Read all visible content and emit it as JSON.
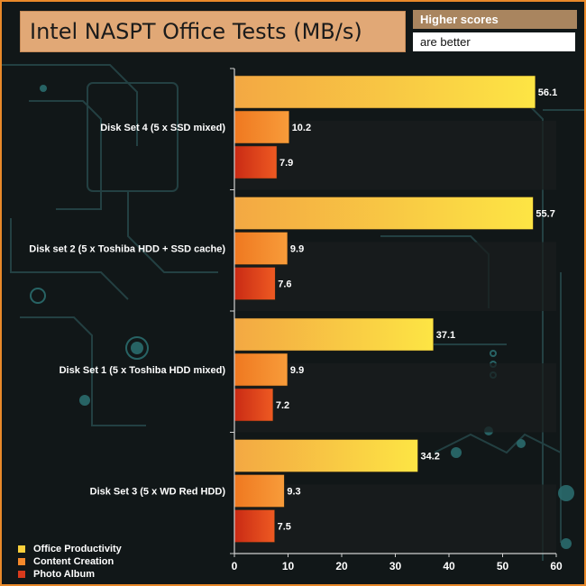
{
  "chart_data": {
    "type": "bar",
    "orientation": "horizontal",
    "title": "Intel NASPT Office Tests (MB/s)",
    "note": [
      "Higher scores",
      "are better"
    ],
    "categories": [
      "Disk Set 4 (5 x SSD mixed)",
      "Disk set 2 (5 x Toshiba HDD + SSD cache)",
      "Disk Set 1 (5 x Toshiba HDD mixed)",
      "Disk Set 3 (5 x WD Red HDD)"
    ],
    "series": [
      {
        "name": "Office Productivity",
        "values": [
          56.1,
          55.7,
          37.1,
          34.2
        ],
        "color": "#fbd03c"
      },
      {
        "name": "Content Creation",
        "values": [
          10.2,
          9.9,
          9.9,
          9.3
        ],
        "color": "#f5892b"
      },
      {
        "name": "Photo Album",
        "values": [
          7.9,
          7.6,
          7.2,
          7.5
        ],
        "color": "#d93a1c"
      }
    ],
    "xlim": [
      0,
      60
    ],
    "xticks": [
      0,
      10,
      20,
      30,
      40,
      50,
      60
    ],
    "legend_position": "bottom-left"
  }
}
